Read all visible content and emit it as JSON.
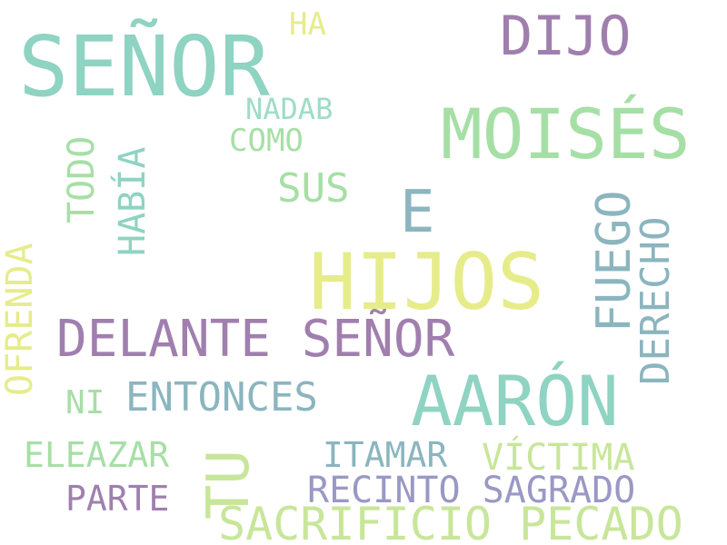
{
  "palette": {
    "teal": "#8fd3c2",
    "mint": "#a6dfa6",
    "lime": "#c8e69a",
    "yellow": "#e6ec8a",
    "purple": "#a07fae",
    "slate": "#8bb5bf",
    "lavender": "#9a98c4"
  },
  "words": {
    "senor_big": {
      "text": "SEÑOR",
      "color": "#8fd3c2"
    },
    "ha": {
      "text": "HA",
      "color": "#e6ec8a"
    },
    "dijo": {
      "text": "DIJO",
      "color": "#a07fae"
    },
    "nadab": {
      "text": "NADAB",
      "color": "#9fdcc6"
    },
    "moises": {
      "text": "MOISÉS",
      "color": "#a6dfa6"
    },
    "como": {
      "text": "COMO",
      "color": "#a6dfa6"
    },
    "sus": {
      "text": "SUS",
      "color": "#a6dfa6"
    },
    "e": {
      "text": "E",
      "color": "#8bb5bf"
    },
    "hijos": {
      "text": "HIJOS",
      "color": "#e6ec8a"
    },
    "delante": {
      "text": "DELANTE SEÑOR",
      "color": "#a07fae"
    },
    "aaron": {
      "text": "AARÓN",
      "color": "#8fd3c2"
    },
    "ni": {
      "text": "NI",
      "color": "#a6dfa6"
    },
    "entonces": {
      "text": "ENTONCES",
      "color": "#8bb5bf"
    },
    "eleazar": {
      "text": "ELEAZAR",
      "color": "#a6dfa6"
    },
    "itamar": {
      "text": "ITAMAR",
      "color": "#8bb5bf"
    },
    "victima": {
      "text": "VÍCTIMA",
      "color": "#c8e69a"
    },
    "recinto": {
      "text": "RECINTO SAGRADO",
      "color": "#9a98c4"
    },
    "parte": {
      "text": "PARTE",
      "color": "#a07fae"
    },
    "sacrificio": {
      "text": "SACRIFICIO PECADO",
      "color": "#c8e69a"
    },
    "todo": {
      "text": "TODO",
      "color": "#a6dfa6"
    },
    "habia": {
      "text": "HABÍA",
      "color": "#8fd3c2"
    },
    "ofrenda": {
      "text": "OFRENDA",
      "color": "#e6ec8a"
    },
    "fuego": {
      "text": "FUEGO",
      "color": "#8bb5bf"
    },
    "derecho": {
      "text": "DERECHO",
      "color": "#8bb5bf"
    },
    "tu": {
      "text": "TU",
      "color": "#c8e69a"
    }
  }
}
